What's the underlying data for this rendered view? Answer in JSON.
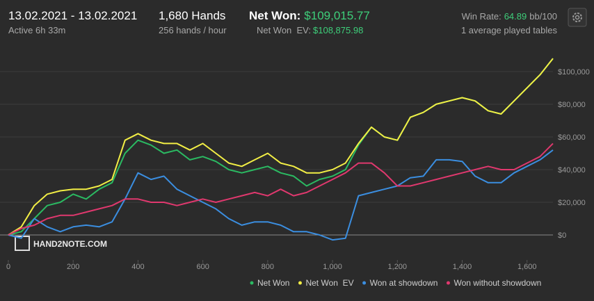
{
  "header": {
    "date_range": "13.02.2021 - 13.02.2021",
    "active": "Active 6h 33m",
    "hands": "1,680 Hands",
    "rate": "256 hands / hour",
    "net_won_label": "Net Won:",
    "net_won_value": "$109,015.77",
    "ev_label": "Net Won  EV:",
    "ev_value": "$108,875.98",
    "win_rate_label": "Win Rate:",
    "win_rate_value": "64.89",
    "win_rate_unit": "bb/100",
    "tables": "1 average played tables"
  },
  "watermark": "HAND2NOTE.COM",
  "chart_data": {
    "type": "line",
    "x": [
      0,
      40,
      80,
      120,
      160,
      200,
      240,
      280,
      320,
      360,
      400,
      440,
      480,
      520,
      560,
      600,
      640,
      680,
      720,
      760,
      800,
      840,
      880,
      920,
      960,
      1000,
      1040,
      1080,
      1120,
      1160,
      1200,
      1240,
      1280,
      1320,
      1360,
      1400,
      1440,
      1480,
      1520,
      1560,
      1600,
      1640,
      1680
    ],
    "xlim": [
      0,
      1680
    ],
    "xticks": [
      0,
      200,
      400,
      600,
      800,
      {
        "value": 1000,
        "label": "1,000"
      },
      {
        "value": 1200,
        "label": "1,200"
      },
      {
        "value": 1400,
        "label": "1,400"
      },
      {
        "value": 1600,
        "label": "1,600"
      }
    ],
    "ylim": [
      -17000,
      114000
    ],
    "yticks": [
      {
        "value": 0,
        "label": "$0"
      },
      {
        "value": 20000,
        "label": "$20,000"
      },
      {
        "value": 40000,
        "label": "$40,000"
      },
      {
        "value": 60000,
        "label": "$60,000"
      },
      {
        "value": 80000,
        "label": "$80,000"
      },
      {
        "value": 100000,
        "label": "$100,000"
      }
    ],
    "grid": true,
    "series": [
      {
        "name": "Net Won",
        "color": "#2bba62",
        "values": [
          0,
          2000,
          10000,
          18000,
          20000,
          25000,
          22000,
          28000,
          32000,
          50000,
          58000,
          55000,
          50000,
          52000,
          46000,
          48000,
          45000,
          40000,
          38000,
          40000,
          42000,
          38000,
          36000,
          30000,
          34000,
          36000,
          40000,
          55000,
          66000,
          60000,
          58000,
          72000,
          75000,
          80000,
          82000,
          84000,
          82000,
          76000,
          74000,
          82000,
          90000,
          98000,
          108000
        ]
      },
      {
        "name": "Net Won  EV",
        "color": "#f2ee45",
        "values": [
          0,
          5000,
          18000,
          25000,
          27000,
          28000,
          28000,
          30000,
          34000,
          58000,
          62000,
          58000,
          56000,
          56000,
          52000,
          56000,
          50000,
          44000,
          42000,
          46000,
          50000,
          44000,
          42000,
          38000,
          38000,
          40000,
          44000,
          56000,
          66000,
          60000,
          58000,
          72000,
          75000,
          80000,
          82000,
          84000,
          82000,
          76000,
          74000,
          82000,
          90000,
          98000,
          108000
        ]
      },
      {
        "name": "Won at showdown",
        "color": "#3b8ee0",
        "values": [
          0,
          -2000,
          10000,
          5000,
          2000,
          5000,
          6000,
          5000,
          8000,
          22000,
          38000,
          34000,
          36000,
          28000,
          24000,
          20000,
          16000,
          10000,
          6000,
          8000,
          8000,
          6000,
          2000,
          2000,
          0,
          -3000,
          -2000,
          24000,
          26000,
          28000,
          30000,
          35000,
          36000,
          46000,
          46000,
          45000,
          36000,
          32000,
          32000,
          38000,
          42000,
          46000,
          52000
        ]
      },
      {
        "name": "Won without showdown",
        "color": "#e0386e",
        "values": [
          0,
          4000,
          6000,
          10000,
          12000,
          12000,
          14000,
          16000,
          18000,
          22000,
          22000,
          20000,
          20000,
          18000,
          20000,
          22000,
          20000,
          22000,
          24000,
          26000,
          24000,
          28000,
          24000,
          26000,
          30000,
          34000,
          38000,
          44000,
          44000,
          38000,
          30000,
          30000,
          32000,
          34000,
          36000,
          38000,
          40000,
          42000,
          40000,
          40000,
          44000,
          48000,
          56000
        ]
      }
    ]
  }
}
